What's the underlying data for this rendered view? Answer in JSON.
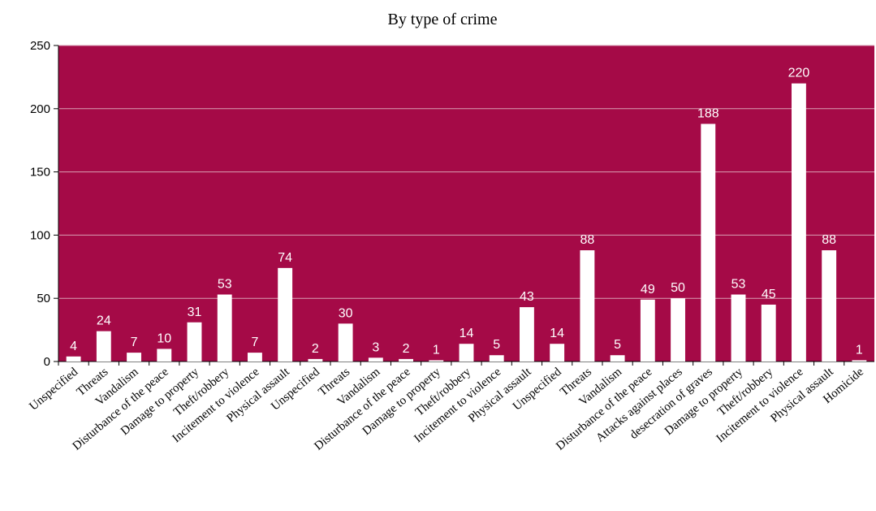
{
  "chart_data": {
    "type": "bar",
    "title": "By type of crime",
    "xlabel": "",
    "ylabel": "",
    "ylim": [
      0,
      250
    ],
    "yticks": [
      0,
      50,
      100,
      150,
      200,
      250
    ],
    "grid": true,
    "legend": "none",
    "colors": {
      "plot_background": "#a50a47",
      "bar": "#ffffff",
      "gridline": "#d9a0b4",
      "data_label": "#ffffff"
    },
    "categories": [
      "Unspecified",
      "Threats",
      "Vandalism",
      "Disturbance of the peace",
      "Damage to property",
      "Theft/robbery",
      "Incitement to violence",
      "Physical assault",
      "Unspecified",
      "Threats",
      "Vandalism",
      "Disturbance of the peace",
      "Damage to property",
      "Theft/robbery",
      "Incitement to violence",
      "Physical assault",
      "Unspecified",
      "Threats",
      "Vandalism",
      "Disturbance of the peace",
      "Attacks against places",
      "desecration of graves",
      "Damage to property",
      "Theft/robbery",
      "Incitement to violence",
      "Physical assault",
      "Homicide"
    ],
    "values": [
      4,
      24,
      7,
      10,
      31,
      53,
      7,
      74,
      2,
      30,
      3,
      2,
      1,
      14,
      5,
      43,
      14,
      88,
      5,
      49,
      50,
      188,
      53,
      45,
      220,
      88,
      1
    ]
  }
}
